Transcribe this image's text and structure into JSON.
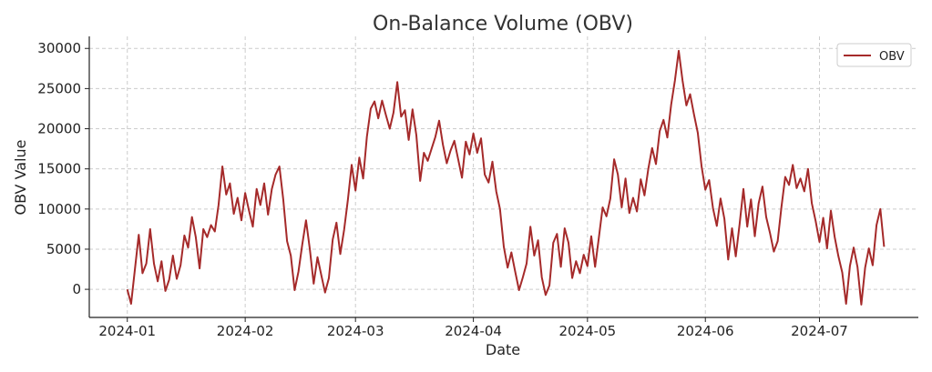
{
  "chart_data": {
    "type": "line",
    "title": "On-Balance Volume (OBV)",
    "xlabel": "Date",
    "ylabel": "OBV Value",
    "x_ticks": [
      "2024-01",
      "2024-02",
      "2024-03",
      "2024-04",
      "2024-05",
      "2024-06",
      "2024-07"
    ],
    "y_ticks": [
      0,
      5000,
      10000,
      15000,
      20000,
      25000,
      30000
    ],
    "x_range": [
      "2023-12-22",
      "2024-07-27"
    ],
    "ylim": [
      -3500,
      31500
    ],
    "grid": true,
    "legend_position": "top-right",
    "series": [
      {
        "name": "OBV",
        "color": "#a52a2a",
        "x_start": "2024-01-01",
        "x_step_days": 1,
        "values": [
          0,
          -1800,
          2500,
          6800,
          2000,
          3200,
          7500,
          3200,
          1000,
          3500,
          -200,
          1200,
          4200,
          1300,
          3000,
          6700,
          5200,
          9000,
          6500,
          2600,
          7500,
          6500,
          8000,
          7200,
          10500,
          15300,
          11800,
          13200,
          9400,
          11400,
          8600,
          12000,
          9800,
          7800,
          12500,
          10500,
          13200,
          9300,
          12500,
          14300,
          15300,
          11200,
          6000,
          4200,
          -100,
          2200,
          5600,
          8600,
          5000,
          700,
          4000,
          1800,
          -400,
          1400,
          6200,
          8300,
          4400,
          7400,
          11200,
          15500,
          12300,
          16400,
          13800,
          19000,
          22500,
          23400,
          21300,
          23500,
          21700,
          20000,
          22000,
          25800,
          21500,
          22300,
          18600,
          22400,
          19200,
          13500,
          17000,
          16000,
          17500,
          19000,
          21000,
          18000,
          15700,
          17300,
          18500,
          16200,
          13900,
          18400,
          16800,
          19400,
          17000,
          18800,
          14300,
          13300,
          15900,
          12200,
          10000,
          5300,
          2700,
          4600,
          2200,
          -100,
          1500,
          3200,
          7800,
          4200,
          6100,
          1500,
          -700,
          500,
          5800,
          6900,
          2800,
          7600,
          5800,
          1400,
          3500,
          2000,
          4300,
          2900,
          6600,
          2800,
          6500,
          10200,
          9100,
          11300,
          16200,
          14300,
          10200,
          13800,
          9500,
          11400,
          9700,
          13700,
          11700,
          15000,
          17600,
          15600,
          19700,
          21100,
          18900,
          23000,
          26000,
          29700,
          26000,
          22900,
          24300,
          21800,
          19500,
          15300,
          12400,
          13600,
          10100,
          7900,
          11300,
          8800,
          3700,
          7600,
          4100,
          8100,
          12500,
          7800,
          11200,
          6600,
          10700,
          12800,
          9000,
          7000,
          4700,
          6000,
          10200,
          14000,
          13000,
          15500,
          12600,
          13800,
          12200,
          15000,
          10700,
          8500,
          5900,
          8900,
          5100,
          9800,
          6500,
          4100,
          2100,
          -1800,
          2900,
          5200,
          2800,
          -1900,
          2700,
          5100,
          3000,
          8000,
          10000,
          5300
        ]
      }
    ]
  }
}
